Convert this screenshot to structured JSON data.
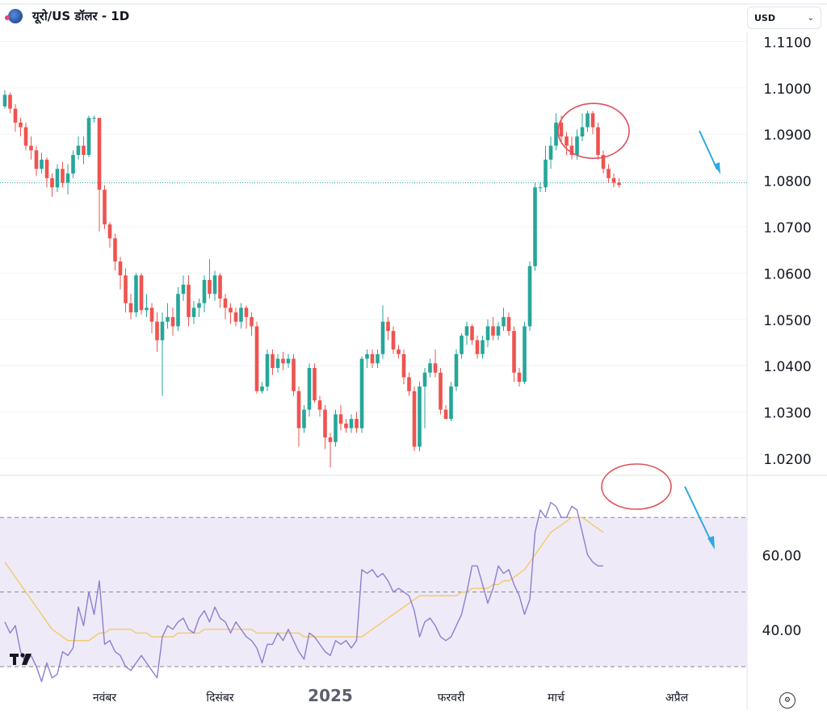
{
  "header": {
    "symbol_title": "यूरो/US डॉलर - 1D",
    "currency": "USD",
    "currency_icon": "chevron-down-icon"
  },
  "colors": {
    "up": "#26a69a",
    "down": "#ef5350",
    "rsi_line": "#8c7fd0",
    "rsi_ma": "#f0c860",
    "rsi_band": "#efeaf8",
    "annotation": "#e0505a",
    "arrow": "#2ea8e0",
    "last_price_line": "#26a69a"
  },
  "chart_data": [
    {
      "type": "candlestick",
      "title": "",
      "y_ticks": [
        "1.0200",
        "1.0300",
        "1.0400",
        "1.0500",
        "1.0600",
        "1.0700",
        "1.0800",
        "1.0900",
        "1.1000",
        "1.1100"
      ],
      "ylim": [
        1.0165,
        1.112
      ],
      "x_ticks": [
        {
          "label": "नवंबर",
          "index": 19
        },
        {
          "label": "दिसंबर",
          "index": 41
        },
        {
          "label": "2025",
          "index": 62
        },
        {
          "label": "फरवरी",
          "index": 85
        },
        {
          "label": "मार्च",
          "index": 105
        },
        {
          "label": "अप्रैल",
          "index": 128
        }
      ],
      "last_price": 1.0795,
      "annotations": [
        "red-circle around March top",
        "blue arrow pointing down"
      ],
      "candles": [
        [
          1.096,
          1.0985,
          1.0995,
          1.0955
        ],
        [
          1.0985,
          1.0955,
          1.099,
          1.0945
        ],
        [
          1.0955,
          1.0925,
          1.0965,
          1.0905
        ],
        [
          1.0925,
          1.0915,
          1.0935,
          1.0895
        ],
        [
          1.0915,
          1.0875,
          1.0925,
          1.0865
        ],
        [
          1.0875,
          1.0865,
          1.0895,
          1.0845
        ],
        [
          1.0865,
          1.0825,
          1.0875,
          1.081
        ],
        [
          1.0825,
          1.0845,
          1.086,
          1.0815
        ],
        [
          1.0845,
          1.0805,
          1.085,
          1.0785
        ],
        [
          1.0805,
          1.0785,
          1.0815,
          1.0765
        ],
        [
          1.0785,
          1.0825,
          1.0835,
          1.0775
        ],
        [
          1.0825,
          1.0795,
          1.084,
          1.0785
        ],
        [
          1.0795,
          1.0815,
          1.0835,
          1.077
        ],
        [
          1.0815,
          1.0855,
          1.0865,
          1.0805
        ],
        [
          1.0855,
          1.0875,
          1.0895,
          1.0845
        ],
        [
          1.0875,
          1.0855,
          1.0895,
          1.0835
        ],
        [
          1.0855,
          1.0935,
          1.094,
          1.085
        ],
        [
          1.0935,
          1.0935,
          1.094,
          1.0925
        ],
        [
          1.0935,
          1.078,
          1.0935,
          1.069
        ],
        [
          1.078,
          1.0705,
          1.079,
          1.0695
        ],
        [
          1.0705,
          1.0675,
          1.071,
          1.0655
        ],
        [
          1.0675,
          1.0625,
          1.0685,
          1.0605
        ],
        [
          1.0625,
          1.0595,
          1.0635,
          1.0565
        ],
        [
          1.0595,
          1.0535,
          1.061,
          1.0515
        ],
        [
          1.0535,
          1.0515,
          1.0555,
          1.05
        ],
        [
          1.0515,
          1.0595,
          1.06,
          1.0505
        ],
        [
          1.0595,
          1.052,
          1.06,
          1.051
        ],
        [
          1.052,
          1.0525,
          1.0555,
          1.0505
        ],
        [
          1.0525,
          1.0495,
          1.0535,
          1.047
        ],
        [
          1.0495,
          1.0455,
          1.0515,
          1.043
        ],
        [
          1.0455,
          1.0495,
          1.0515,
          1.0335
        ],
        [
          1.0495,
          1.0505,
          1.0535,
          1.048
        ],
        [
          1.0505,
          1.0485,
          1.0525,
          1.0465
        ],
        [
          1.0485,
          1.0555,
          1.057,
          1.0475
        ],
        [
          1.0555,
          1.0575,
          1.0595,
          1.054
        ],
        [
          1.0575,
          1.0505,
          1.0595,
          1.0485
        ],
        [
          1.0505,
          1.0525,
          1.054,
          1.049
        ],
        [
          1.0525,
          1.0535,
          1.0545,
          1.0505
        ],
        [
          1.0535,
          1.0585,
          1.0595,
          1.0515
        ],
        [
          1.0585,
          1.0555,
          1.063,
          1.0545
        ],
        [
          1.0555,
          1.0595,
          1.0605,
          1.054
        ],
        [
          1.0595,
          1.0545,
          1.06,
          1.0525
        ],
        [
          1.0545,
          1.0525,
          1.0555,
          1.05
        ],
        [
          1.0525,
          1.0515,
          1.0535,
          1.049
        ],
        [
          1.0515,
          1.0495,
          1.0525,
          1.0485
        ],
        [
          1.0495,
          1.0525,
          1.0535,
          1.048
        ],
        [
          1.0525,
          1.0505,
          1.053,
          1.048
        ],
        [
          1.0505,
          1.0485,
          1.0515,
          1.0465
        ],
        [
          1.0485,
          1.0345,
          1.0495,
          1.034
        ],
        [
          1.0345,
          1.0355,
          1.0365,
          1.034
        ],
        [
          1.0355,
          1.0425,
          1.0435,
          1.0345
        ],
        [
          1.0425,
          1.0395,
          1.0435,
          1.038
        ],
        [
          1.0395,
          1.0415,
          1.0425,
          1.0385
        ],
        [
          1.0415,
          1.0405,
          1.043,
          1.039
        ],
        [
          1.0405,
          1.0415,
          1.0425,
          1.0395
        ],
        [
          1.0415,
          1.0345,
          1.0425,
          1.0335
        ],
        [
          1.0345,
          1.0265,
          1.0355,
          1.0225
        ],
        [
          1.0265,
          1.0305,
          1.0315,
          1.0255
        ],
        [
          1.0305,
          1.0395,
          1.0405,
          1.029
        ],
        [
          1.0395,
          1.0325,
          1.0405,
          1.032
        ],
        [
          1.0325,
          1.0305,
          1.0335,
          1.029
        ],
        [
          1.0305,
          1.0245,
          1.0315,
          1.022
        ],
        [
          1.0245,
          1.0235,
          1.0255,
          1.018
        ],
        [
          1.0235,
          1.0295,
          1.0305,
          1.0225
        ],
        [
          1.0295,
          1.0275,
          1.0315,
          1.026
        ],
        [
          1.0275,
          1.0265,
          1.0285,
          1.0255
        ],
        [
          1.0265,
          1.0285,
          1.0295,
          1.0255
        ],
        [
          1.0285,
          1.0265,
          1.03,
          1.0255
        ],
        [
          1.0265,
          1.0415,
          1.042,
          1.0255
        ],
        [
          1.0415,
          1.0425,
          1.0435,
          1.0395
        ],
        [
          1.0425,
          1.0405,
          1.0435,
          1.0395
        ],
        [
          1.0405,
          1.0425,
          1.0435,
          1.0395
        ],
        [
          1.0425,
          1.0495,
          1.053,
          1.0415
        ],
        [
          1.0495,
          1.0475,
          1.0505,
          1.0455
        ],
        [
          1.0475,
          1.0435,
          1.0485,
          1.0425
        ],
        [
          1.0435,
          1.0425,
          1.0445,
          1.0415
        ],
        [
          1.0425,
          1.0375,
          1.0435,
          1.036
        ],
        [
          1.0375,
          1.0345,
          1.0385,
          1.0335
        ],
        [
          1.0345,
          1.0225,
          1.0355,
          1.0215
        ],
        [
          1.0225,
          1.0355,
          1.0365,
          1.0215
        ],
        [
          1.0355,
          1.0385,
          1.0395,
          1.0265
        ],
        [
          1.0385,
          1.0405,
          1.0415,
          1.0375
        ],
        [
          1.0405,
          1.0385,
          1.0435,
          1.0375
        ],
        [
          1.0385,
          1.0305,
          1.0395,
          1.0295
        ],
        [
          1.0305,
          1.0285,
          1.0315,
          1.0285
        ],
        [
          1.0285,
          1.0355,
          1.0365,
          1.028
        ],
        [
          1.0355,
          1.0425,
          1.0435,
          1.0345
        ],
        [
          1.0425,
          1.0465,
          1.047,
          1.0415
        ],
        [
          1.0465,
          1.0485,
          1.0495,
          1.0445
        ],
        [
          1.0485,
          1.0455,
          1.049,
          1.0445
        ],
        [
          1.0455,
          1.0425,
          1.0465,
          1.0415
        ],
        [
          1.0425,
          1.0455,
          1.0465,
          1.0415
        ],
        [
          1.0455,
          1.0485,
          1.05,
          1.044
        ],
        [
          1.0485,
          1.0465,
          1.0505,
          1.0455
        ],
        [
          1.0465,
          1.0485,
          1.0495,
          1.0455
        ],
        [
          1.0485,
          1.0505,
          1.0525,
          1.0475
        ],
        [
          1.0505,
          1.0475,
          1.0515,
          1.0465
        ],
        [
          1.0475,
          1.0385,
          1.0485,
          1.0365
        ],
        [
          1.0385,
          1.0365,
          1.0395,
          1.0355
        ],
        [
          1.0365,
          1.0485,
          1.0495,
          1.036
        ],
        [
          1.0485,
          1.0615,
          1.0625,
          1.0475
        ],
        [
          1.0615,
          1.0785,
          1.0795,
          1.0605
        ],
        [
          1.0785,
          1.0785,
          1.0795,
          1.0775
        ],
        [
          1.0785,
          1.0845,
          1.0875,
          1.0775
        ],
        [
          1.0845,
          1.0875,
          1.0895,
          1.0825
        ],
        [
          1.0875,
          1.0925,
          1.0945,
          1.0865
        ],
        [
          1.0925,
          1.0895,
          1.094,
          1.088
        ],
        [
          1.0895,
          1.0875,
          1.0905,
          1.0855
        ],
        [
          1.0875,
          1.0855,
          1.0895,
          1.0845
        ],
        [
          1.0855,
          1.0895,
          1.091,
          1.0845
        ],
        [
          1.0895,
          1.0915,
          1.0945,
          1.0885
        ],
        [
          1.0915,
          1.0945,
          1.095,
          1.0905
        ],
        [
          1.0945,
          1.0915,
          1.095,
          1.09
        ],
        [
          1.0915,
          1.0855,
          1.0925,
          1.0845
        ],
        [
          1.0855,
          1.0825,
          1.0865,
          1.0815
        ],
        [
          1.0825,
          1.0805,
          1.0835,
          1.0795
        ],
        [
          1.0805,
          1.0795,
          1.0815,
          1.0785
        ],
        [
          1.0795,
          1.079,
          1.0805,
          1.0785
        ]
      ]
    },
    {
      "type": "line",
      "title": "",
      "y_ticks": [
        "40.00",
        "60.00"
      ],
      "ylim": [
        27,
        80
      ],
      "bands": [
        30,
        50,
        70
      ],
      "series": [
        {
          "values": [
            42,
            39,
            41,
            34,
            31,
            33,
            30,
            26,
            31,
            27,
            28,
            34,
            33,
            35,
            46,
            41,
            50,
            44,
            53,
            36,
            37,
            34,
            33,
            30,
            29,
            31,
            33,
            31,
            29,
            27,
            38,
            41,
            40,
            42,
            43,
            40,
            39,
            43,
            45,
            42,
            46,
            43,
            42,
            39,
            42,
            40,
            38,
            37,
            35,
            31,
            36,
            36,
            39,
            37,
            40,
            37,
            34,
            32,
            39,
            38,
            36,
            34,
            33,
            37,
            36,
            37,
            35,
            37,
            56,
            55,
            56,
            54,
            55,
            53,
            50,
            51,
            50,
            49,
            45,
            38,
            42,
            43,
            41,
            38,
            37,
            38,
            41,
            44,
            50,
            57,
            57,
            52,
            47,
            51,
            57,
            55,
            56,
            52,
            49,
            44,
            48,
            66,
            72,
            70,
            74,
            73,
            70,
            70,
            73,
            72,
            66,
            60,
            58,
            57,
            57
          ]
        },
        {
          "values": [
            58,
            56,
            54,
            52,
            50,
            48,
            46,
            44,
            42,
            40,
            39,
            38,
            37,
            37,
            37,
            37,
            37,
            38,
            39,
            39,
            40,
            40,
            40,
            40,
            40,
            39,
            39,
            39,
            38,
            38,
            38,
            38,
            38,
            39,
            39,
            39,
            39,
            39,
            40,
            40,
            40,
            40,
            40,
            40,
            40,
            40,
            40,
            40,
            39,
            39,
            39,
            39,
            39,
            39,
            39,
            39,
            39,
            38,
            38,
            38,
            38,
            38,
            38,
            38,
            38,
            38,
            38,
            38,
            38,
            39,
            40,
            41,
            42,
            43,
            44,
            45,
            46,
            47,
            48,
            49,
            49,
            49,
            49,
            49,
            49,
            49,
            49,
            50,
            50,
            51,
            51,
            51,
            51,
            52,
            52,
            53,
            53,
            54,
            55,
            56,
            58,
            60,
            62,
            64,
            66,
            67,
            68,
            69,
            70,
            70,
            70,
            69,
            68,
            67,
            66
          ]
        }
      ]
    }
  ]
}
